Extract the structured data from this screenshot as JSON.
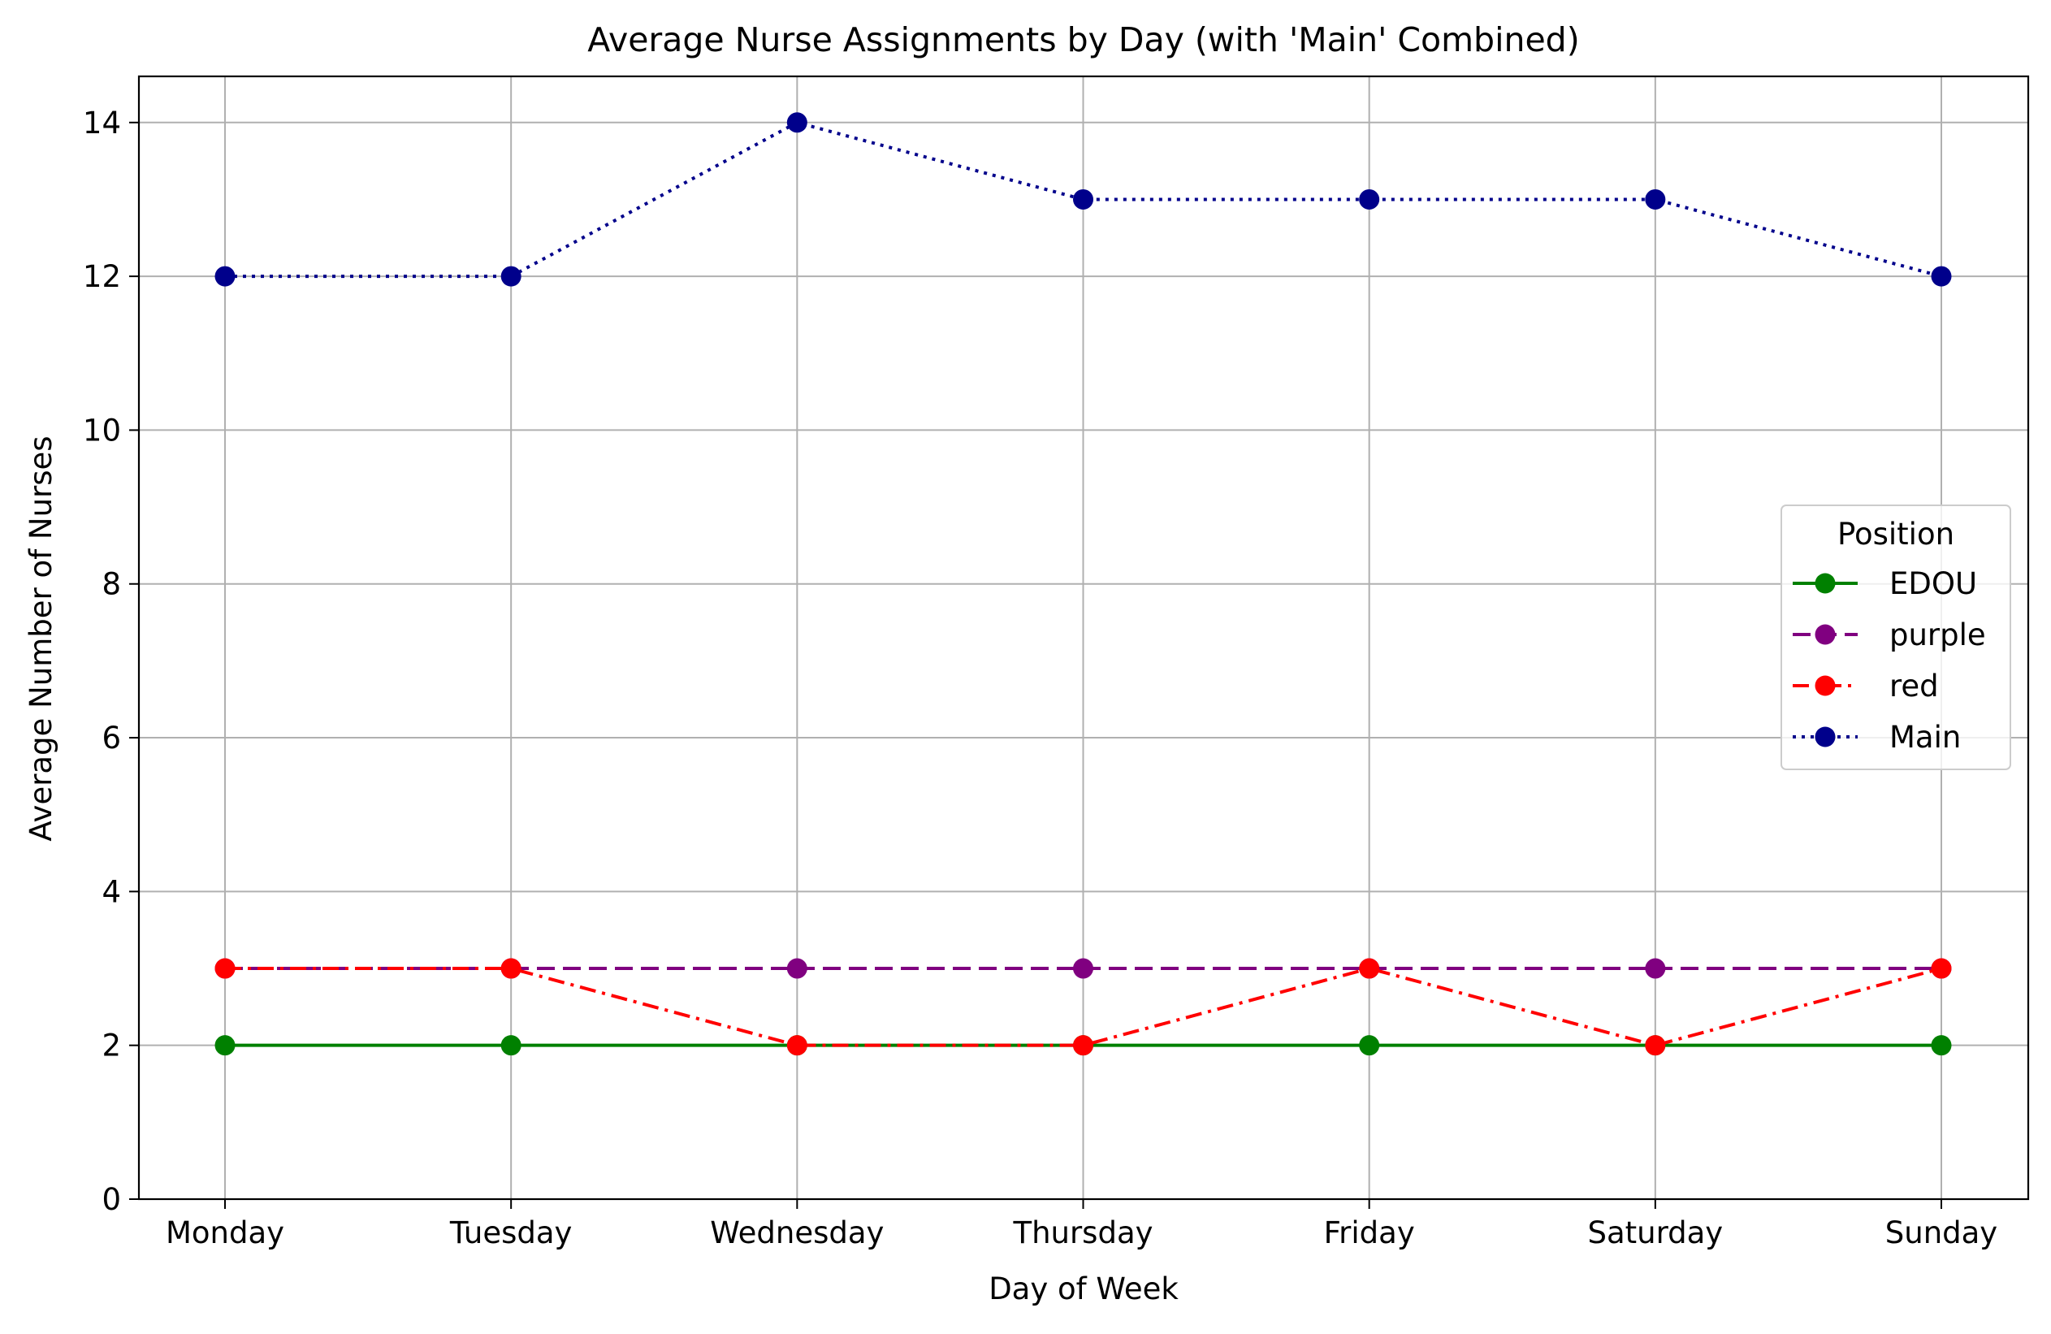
{
  "chart_data": {
    "type": "line",
    "title": "Average Nurse Assignments by Day (with 'Main' Combined)",
    "xlabel": "Day of Week",
    "ylabel": "Average Number of Nurses",
    "categories": [
      "Monday",
      "Tuesday",
      "Wednesday",
      "Thursday",
      "Friday",
      "Saturday",
      "Sunday"
    ],
    "ylim": [
      0,
      14.6
    ],
    "yticks": [
      0,
      2,
      4,
      6,
      8,
      10,
      12,
      14
    ],
    "grid": true,
    "legend": {
      "title": "Position",
      "placement": "center-right"
    },
    "series": [
      {
        "name": "EDOU",
        "values": [
          2,
          2,
          2,
          2,
          2,
          2,
          2
        ],
        "color": "#008000",
        "linestyle": "solid"
      },
      {
        "name": "purple",
        "values": [
          3,
          3,
          3,
          3,
          3,
          3,
          3
        ],
        "color": "#800080",
        "linestyle": "dashed"
      },
      {
        "name": "red",
        "values": [
          3,
          3,
          2,
          2,
          3,
          2,
          3
        ],
        "color": "#ff0000",
        "linestyle": "dashdot"
      },
      {
        "name": "Main",
        "values": [
          12,
          12,
          14,
          13,
          13,
          13,
          12
        ],
        "color": "#00008b",
        "linestyle": "dotted"
      }
    ]
  }
}
